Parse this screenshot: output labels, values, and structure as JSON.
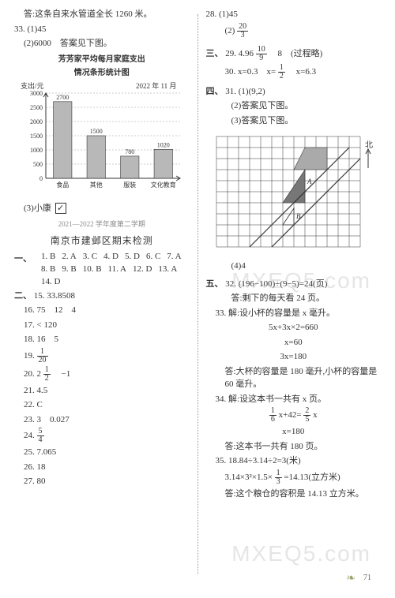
{
  "left": {
    "top_answer": "答:这条自来水管道全长 1260 米。",
    "q33_1": "33. (1)45",
    "q33_2": "(2)6000　答案见下图。",
    "chart": {
      "title1": "芳芳家平均每月家庭支出",
      "title2": "情况条形统计图",
      "y_label": "支出/元",
      "date": "2022 年 11 月",
      "categories": [
        "食品",
        "其他",
        "服装",
        "文化教育"
      ],
      "values": [
        2700,
        1500,
        780,
        1020
      ],
      "value_labels": [
        "2700",
        "1500",
        "780",
        "1020"
      ],
      "ymax": 3000,
      "ytick_step": 500,
      "yticks": [
        "3000",
        "2500",
        "2000",
        "1500",
        "1000",
        "500",
        "0"
      ],
      "bar_color": "#b8b8b8",
      "bar_stroke": "#333333",
      "grid_color": "#999999",
      "axis_color": "#333333"
    },
    "q33_3_label": "(3)小康",
    "q33_3_check": "✓",
    "gray_header": "2021—2022 学年度第二学期",
    "sub_title": "南京市建邺区期末检测",
    "section1_label": "一、",
    "section1": [
      "1. B",
      "2. A",
      "3. C",
      "4. D",
      "5. D",
      "6. C",
      "7. A",
      "8. B",
      "9. B",
      "10. B",
      "11. A",
      "12. D",
      "13. A",
      "14. D"
    ],
    "section2_label": "二、",
    "q15": "15. 33.8508",
    "q16": "16. 75　12　4",
    "q17": "17. < 120",
    "q18": "18. 16　5",
    "q19_num": "19.",
    "q19_frac_n": "1",
    "q19_frac_d": "20",
    "q20_num": "20. 2",
    "q20_frac_n": "1",
    "q20_frac_d": "2",
    "q20_tail": "　−1",
    "q21": "21. 4.5",
    "q22": "22. C",
    "q23": "23. 3　0.027",
    "q24_num": "24.",
    "q24_frac_n": "5",
    "q24_frac_d": "4",
    "q25": "25. 7.065",
    "q26": "26. 18",
    "q27": "27. 80"
  },
  "right": {
    "q28_1": "28. (1)45",
    "q28_2_label": "(2)",
    "q28_2_frac_n": "20",
    "q28_2_frac_d": "3",
    "section3_label": "三、",
    "q29_a": "29. 4.96",
    "q29_frac_n": "10",
    "q29_frac_d": "9",
    "q29_b": "　8　(过程略)",
    "q30_a": "30. x=0.3　x=",
    "q30_frac_n": "1",
    "q30_frac_d": "2",
    "q30_b": "　x=6.3",
    "section4_label": "四、",
    "q31_1": "31. (1)(9,2)",
    "q31_2": "(2)答案见下图。",
    "q31_3": "(3)答案见下图。",
    "grid": {
      "cols": 13,
      "rows": 10,
      "cell": 14,
      "bg": "#ffffff",
      "line_color": "#333333",
      "north_label": "北",
      "label_A": "A",
      "label_B": "B",
      "road_color": "#333333",
      "triangle_fill": "#777777",
      "shape_gray_fill": "#aaaaaa"
    },
    "q31_4": "(4)4",
    "section5_label": "五、",
    "q32_1": "32. (196−100)÷(9−5)=24(页)",
    "q32_2": "答:剩下的每天看 24 页。",
    "q33_h": "33. 解:设小杯的容量是 x 毫升。",
    "q33_l1": "5x+3x×2=660",
    "q33_l2": "x=60",
    "q33_l3": "3x=180",
    "q33_ans": "答:大杯的容量是 180 毫升,小杯的容量是 60 毫升。",
    "q34_h": "34. 解:设这本书一共有 x 页。",
    "q34_eq_left_n": "1",
    "q34_eq_left_d": "6",
    "q34_eq_mid": "x+42=",
    "q34_eq_right_n": "2",
    "q34_eq_right_d": "5",
    "q34_eq_tail": "x",
    "q34_l2": "x=180",
    "q34_ans": "答:这本书一共有 180 页。",
    "q35_1": "35. 18.84÷3.14÷2=3(米)",
    "q35_2a": "3.14×3²×1.5×",
    "q35_2_frac_n": "1",
    "q35_2_frac_d": "3",
    "q35_2b": "=14.13(立方米)",
    "q35_ans": "答:这个粮仓的容积是 14.13 立方米。"
  },
  "page_number": "71",
  "watermark": "MXEQ5.com"
}
